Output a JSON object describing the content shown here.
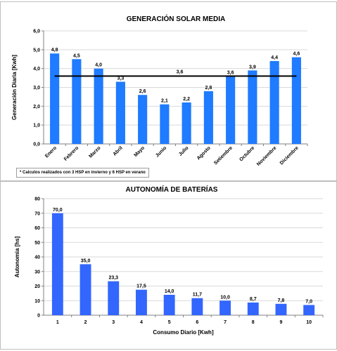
{
  "chart_data": [
    {
      "type": "bar",
      "title": "GENERACIÓN SOLAR MEDIA",
      "ylabel": "Generación Diaria [Kwh]",
      "xlabel": "",
      "categories": [
        "Enero",
        "Febrero",
        "Marzo",
        "Abril",
        "Mayo",
        "Junio",
        "Julio",
        "Agosto",
        "Setiembre",
        "Octubre",
        "Noviembre",
        "Diciembre"
      ],
      "values": [
        4.8,
        4.5,
        4.0,
        3.3,
        2.6,
        2.1,
        2.2,
        2.8,
        3.6,
        3.9,
        4.4,
        4.6
      ],
      "data_labels": [
        "4,8",
        "4,5",
        "4,0",
        "3,3",
        "2,6",
        "2,1",
        "2,2",
        "2,8",
        "3,6",
        "3,9",
        "4,4",
        "4,6"
      ],
      "reference_line": {
        "value": 3.6,
        "label": "3,6",
        "color": "#000000"
      },
      "ylim": [
        0,
        6
      ],
      "yticks": [
        "0,0",
        "1,0",
        "2,0",
        "3,0",
        "4,0",
        "5,0",
        "6,0"
      ],
      "grid": true,
      "bar_color": "#1f7bff",
      "note": "* Calculos realizados con 3 HSP en invierno y 6 HSP en verano"
    },
    {
      "type": "bar",
      "title": "AUTONOMÍA DE BATERÍAS",
      "ylabel": "Autonomia [hs]",
      "xlabel": "Consumo Diario [Kwh]",
      "categories": [
        "1",
        "2",
        "3",
        "4",
        "5",
        "6",
        "7",
        "8",
        "9",
        "10"
      ],
      "values": [
        70.0,
        35.0,
        23.3,
        17.5,
        14.0,
        11.7,
        10.0,
        8.7,
        7.8,
        7.0
      ],
      "data_labels": [
        "70,0",
        "35,0",
        "23,3",
        "17,5",
        "14,0",
        "11,7",
        "10,0",
        "8,7",
        "7,8",
        "7,0"
      ],
      "ylim": [
        0,
        80
      ],
      "yticks": [
        "0",
        "10",
        "20",
        "30",
        "40",
        "50",
        "60",
        "70",
        "80"
      ],
      "grid": true,
      "bar_color": "#3366ff"
    }
  ]
}
